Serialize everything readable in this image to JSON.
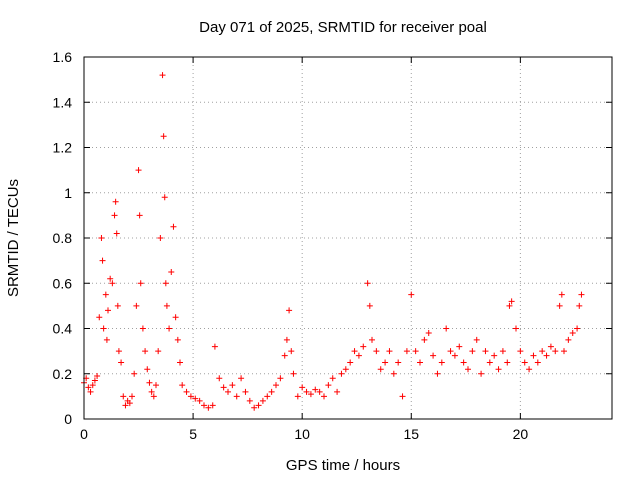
{
  "chart_data": {
    "type": "scatter",
    "title": "Day 071 of 2025, SRMTID for receiver poal",
    "xlabel": "GPS time / hours",
    "ylabel": "SRMTID / TECUs",
    "xlim": [
      0,
      24.2
    ],
    "ylim": [
      0,
      1.6
    ],
    "grid": true,
    "marker": "+",
    "colors": {
      "series": "#ff0000",
      "grid": "#a0a0a0",
      "axis": "#000000"
    },
    "x_ticks": [
      0,
      5,
      10,
      15,
      20
    ],
    "x_tick_labels": [
      "0",
      "5",
      "10",
      "15",
      "20"
    ],
    "y_ticks": [
      0,
      0.2,
      0.4,
      0.6,
      0.8,
      1.0,
      1.2,
      1.4,
      1.6
    ],
    "y_tick_labels": [
      "0",
      "0.2",
      "0.4",
      "0.6",
      "0.8",
      "1",
      "1.2",
      "1.4",
      "1.6"
    ],
    "series": [
      {
        "name": "SRMTID",
        "x": [
          0.0,
          0.1,
          0.2,
          0.3,
          0.4,
          0.5,
          0.6,
          0.7,
          0.8,
          0.85,
          0.9,
          1.0,
          1.05,
          1.1,
          1.2,
          1.3,
          1.4,
          1.45,
          1.5,
          1.55,
          1.6,
          1.7,
          1.8,
          1.9,
          2.0,
          2.1,
          2.2,
          2.3,
          2.4,
          2.5,
          2.55,
          2.6,
          2.7,
          2.8,
          2.9,
          3.0,
          3.1,
          3.2,
          3.3,
          3.4,
          3.5,
          3.6,
          3.65,
          3.7,
          3.75,
          3.8,
          3.9,
          4.0,
          4.1,
          4.2,
          4.3,
          4.4,
          4.5,
          4.7,
          4.9,
          5.1,
          5.3,
          5.5,
          5.7,
          5.9,
          6.0,
          6.2,
          6.4,
          6.6,
          6.8,
          7.0,
          7.2,
          7.4,
          7.6,
          7.8,
          8.0,
          8.2,
          8.4,
          8.6,
          8.8,
          9.0,
          9.2,
          9.3,
          9.4,
          9.5,
          9.6,
          9.8,
          10.0,
          10.2,
          10.4,
          10.6,
          10.8,
          11.0,
          11.2,
          11.4,
          11.6,
          11.8,
          12.0,
          12.2,
          12.4,
          12.6,
          12.8,
          13.0,
          13.1,
          13.2,
          13.4,
          13.6,
          13.8,
          14.0,
          14.2,
          14.4,
          14.6,
          14.8,
          15.0,
          15.2,
          15.4,
          15.6,
          15.8,
          16.0,
          16.2,
          16.4,
          16.6,
          16.8,
          17.0,
          17.2,
          17.4,
          17.6,
          17.8,
          18.0,
          18.2,
          18.4,
          18.6,
          18.8,
          19.0,
          19.2,
          19.4,
          19.5,
          19.6,
          19.8,
          20.0,
          20.2,
          20.4,
          20.6,
          20.8,
          21.0,
          21.2,
          21.4,
          21.6,
          21.8,
          21.9,
          22.0,
          22.2,
          22.4,
          22.6,
          22.7,
          22.8
        ],
        "y": [
          0.16,
          0.18,
          0.14,
          0.12,
          0.15,
          0.17,
          0.19,
          0.45,
          0.8,
          0.7,
          0.4,
          0.55,
          0.35,
          0.48,
          0.62,
          0.6,
          0.9,
          0.96,
          0.82,
          0.5,
          0.3,
          0.25,
          0.1,
          0.06,
          0.08,
          0.07,
          0.1,
          0.2,
          0.5,
          1.1,
          0.9,
          0.6,
          0.4,
          0.3,
          0.22,
          0.16,
          0.12,
          0.1,
          0.15,
          0.3,
          0.8,
          1.52,
          1.25,
          0.98,
          0.6,
          0.5,
          0.4,
          0.65,
          0.85,
          0.45,
          0.35,
          0.25,
          0.15,
          0.12,
          0.1,
          0.09,
          0.08,
          0.06,
          0.05,
          0.06,
          0.32,
          0.18,
          0.14,
          0.12,
          0.15,
          0.1,
          0.18,
          0.12,
          0.08,
          0.05,
          0.06,
          0.08,
          0.1,
          0.12,
          0.15,
          0.18,
          0.28,
          0.35,
          0.48,
          0.3,
          0.2,
          0.1,
          0.14,
          0.12,
          0.11,
          0.13,
          0.12,
          0.1,
          0.15,
          0.18,
          0.12,
          0.2,
          0.22,
          0.25,
          0.3,
          0.28,
          0.32,
          0.6,
          0.5,
          0.35,
          0.3,
          0.22,
          0.25,
          0.3,
          0.2,
          0.25,
          0.1,
          0.3,
          0.55,
          0.3,
          0.25,
          0.35,
          0.38,
          0.28,
          0.2,
          0.25,
          0.4,
          0.3,
          0.28,
          0.32,
          0.25,
          0.22,
          0.3,
          0.35,
          0.2,
          0.3,
          0.25,
          0.28,
          0.22,
          0.3,
          0.25,
          0.5,
          0.52,
          0.4,
          0.3,
          0.25,
          0.22,
          0.28,
          0.25,
          0.3,
          0.28,
          0.32,
          0.3,
          0.5,
          0.55,
          0.3,
          0.35,
          0.38,
          0.4,
          0.5,
          0.55
        ]
      }
    ]
  }
}
